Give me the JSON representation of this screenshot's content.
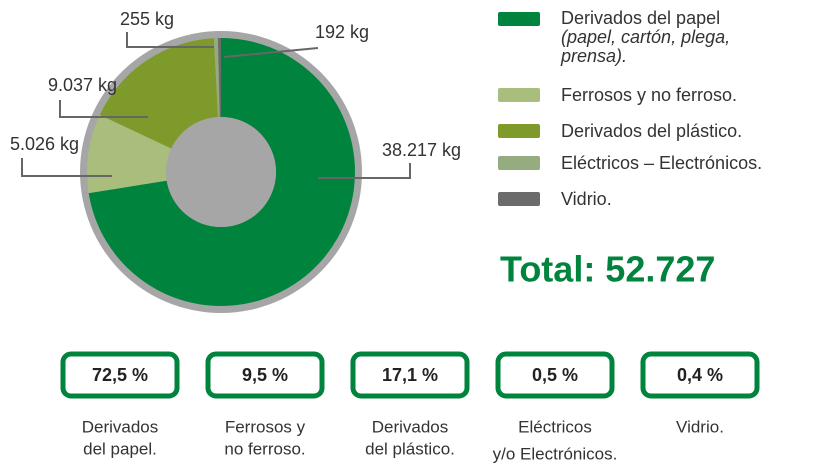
{
  "chart_data": {
    "type": "pie",
    "donut": true,
    "categories": [
      "Derivados del papel",
      "Ferrosos y no ferroso.",
      "Derivados del plástico.",
      "Eléctricos – Electrónicos.",
      "Vidrio."
    ],
    "legend_note": "(papel, cartón, plega, prensa).",
    "values": [
      38217,
      5026,
      9037,
      255,
      192
    ],
    "value_labels": [
      "38.217 kg",
      "5.026 kg",
      "9.037 kg",
      "255 kg",
      "192 kg"
    ],
    "colors": [
      "#00843d",
      "#a9bd7d",
      "#7e9a2a",
      "#95ab80",
      "#6b6b6b"
    ]
  },
  "total": "Total: 52.727",
  "summary": [
    {
      "percent": "72,5 %",
      "lines": [
        "Derivados",
        "del papel."
      ]
    },
    {
      "percent": "9,5 %",
      "lines": [
        "Ferrosos y",
        "no ferroso."
      ]
    },
    {
      "percent": "17,1 %",
      "lines": [
        "Derivados",
        "del plástico."
      ]
    },
    {
      "percent": "0,5 %",
      "lines": [
        "Eléctricos",
        "y/o Electrónicos."
      ]
    },
    {
      "percent": "0,4 %",
      "lines": [
        "Vidrio."
      ]
    }
  ]
}
